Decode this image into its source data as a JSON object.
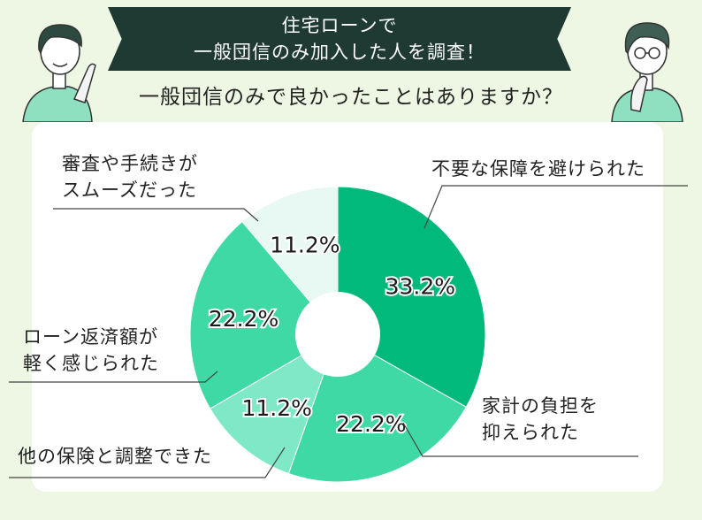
{
  "header": {
    "banner_line1": "住宅ローンで",
    "banner_line2": "一般団信のみ加入した人を調査！",
    "question": "一般団信のみで良かったことはありますか？"
  },
  "colors": {
    "background": "#eef7e3",
    "banner": "#1f3a33",
    "slice_dark": "#00b97a",
    "slice_mid": "#3fd9a5",
    "slice_light": "#7fe8c6",
    "slice_pale": "#e8f8f2"
  },
  "chart_data": {
    "type": "pie",
    "donut": true,
    "slices": [
      {
        "label_lines": [
          "不要な保障を避けられた"
        ],
        "value": 33.2,
        "value_label": "33.2%",
        "color": "#00b97a"
      },
      {
        "label_lines": [
          "家計の負担を",
          "抑えられた"
        ],
        "value": 22.2,
        "value_label": "22.2%",
        "color": "#3fd9a5"
      },
      {
        "label_lines": [
          "他の保険と調整できた"
        ],
        "value": 11.2,
        "value_label": "11.2%",
        "color": "#7fe8c6"
      },
      {
        "label_lines": [
          "ローン返済額が",
          "軽く感じられた"
        ],
        "value": 22.2,
        "value_label": "22.2%",
        "color": "#3fd9a5"
      },
      {
        "label_lines": [
          "審査や手続きが",
          "スムーズだった"
        ],
        "value": 11.2,
        "value_label": "11.2%",
        "color": "#e8f8f2"
      }
    ]
  }
}
